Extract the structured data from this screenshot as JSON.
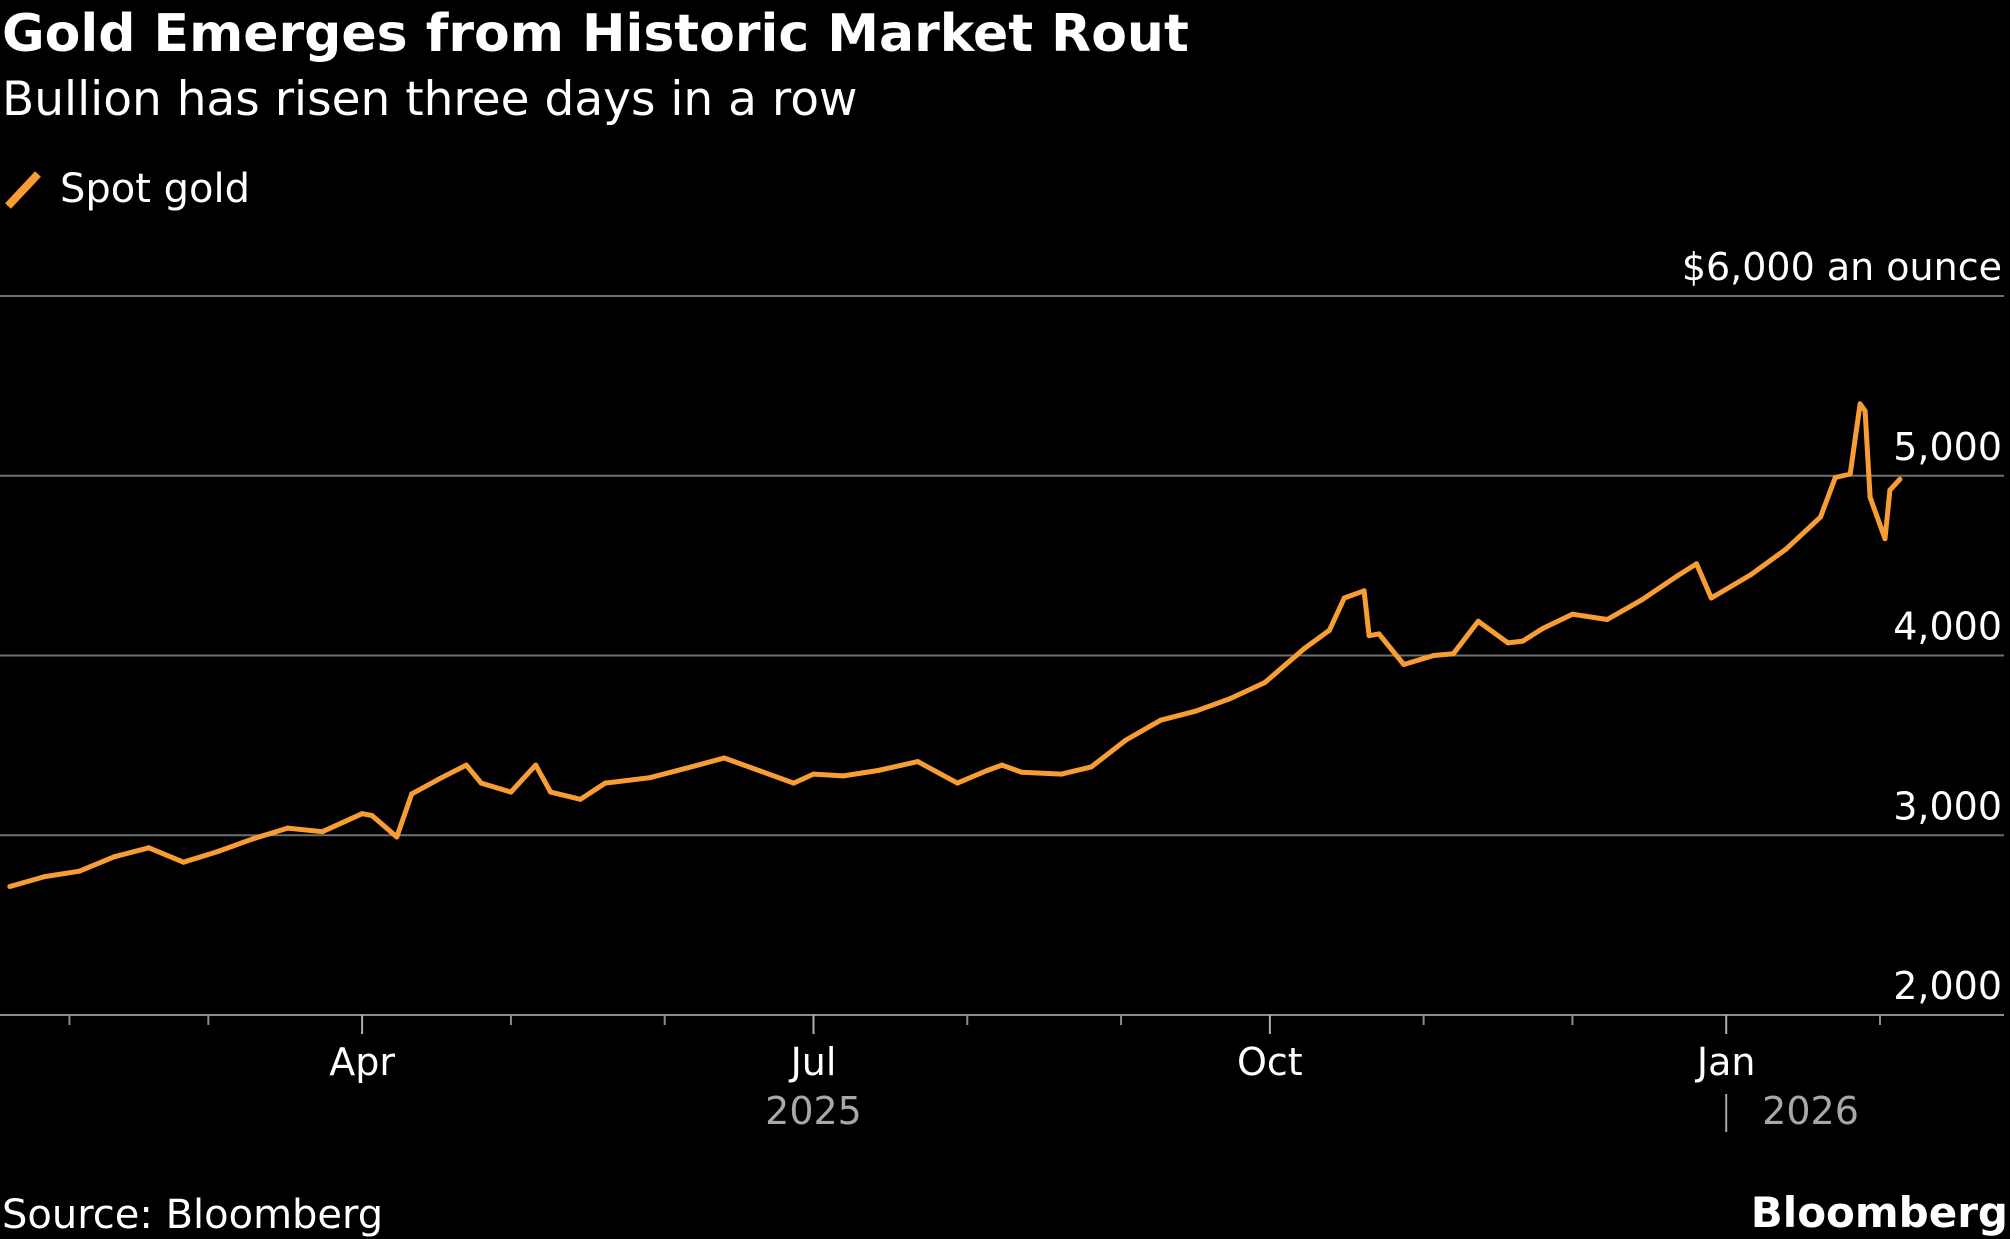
{
  "header": {
    "title": "Gold Emerges from Historic Market Rout",
    "subtitle": "Bullion has risen three days in a row"
  },
  "footer": {
    "source": "Source: Bloomberg",
    "brand": "Bloomberg"
  },
  "colors": {
    "background": "#000000",
    "series": "#f89d34",
    "grid": "#6e6e6e",
    "text": "#ffffff",
    "muted": "#a8a8a8"
  },
  "chart_data": {
    "type": "line",
    "title": "Gold Emerges from Historic Market Rout",
    "subtitle": "Bullion has risen three days in a row",
    "xlabel": "",
    "ylabel": "",
    "y_unit_label": "$6,000 an ounce",
    "ylim": [
      2000,
      6000
    ],
    "xlim": [
      "2025-01-18",
      "2026-02-26"
    ],
    "grid": true,
    "legend": "top-left",
    "y_ticks": [
      {
        "value": 6000,
        "label": "$6,000 an ounce"
      },
      {
        "value": 5000,
        "label": "5,000"
      },
      {
        "value": 4000,
        "label": "4,000"
      },
      {
        "value": 3000,
        "label": "3,000"
      },
      {
        "value": 2000,
        "label": "2,000"
      }
    ],
    "x_major_ticks": [
      {
        "date": "2025-04-01",
        "label": "Apr"
      },
      {
        "date": "2025-07-01",
        "label": "Jul"
      },
      {
        "date": "2025-10-01",
        "label": "Oct"
      },
      {
        "date": "2026-01-01",
        "label": "Jan"
      }
    ],
    "x_minor_ticks": [
      "2025-02-01",
      "2025-03-01",
      "2025-05-01",
      "2025-06-01",
      "2025-08-01",
      "2025-09-01",
      "2025-11-01",
      "2025-12-01",
      "2026-02-01"
    ],
    "year_labels": [
      {
        "date": "2025-07-01",
        "label": "2025"
      },
      {
        "date": "2026-01-18",
        "label": "2026"
      }
    ],
    "year_divider_date": "2026-01-01",
    "series": [
      {
        "name": "Spot gold",
        "color": "#f89d34",
        "x": [
          "2025-01-20",
          "2025-01-27",
          "2025-02-03",
          "2025-02-10",
          "2025-02-17",
          "2025-02-24",
          "2025-03-03",
          "2025-03-10",
          "2025-03-17",
          "2025-03-24",
          "2025-04-01",
          "2025-04-03",
          "2025-04-08",
          "2025-04-11",
          "2025-04-17",
          "2025-04-22",
          "2025-04-25",
          "2025-05-01",
          "2025-05-06",
          "2025-05-09",
          "2025-05-15",
          "2025-05-20",
          "2025-05-29",
          "2025-06-05",
          "2025-06-13",
          "2025-06-20",
          "2025-06-27",
          "2025-07-01",
          "2025-07-07",
          "2025-07-14",
          "2025-07-22",
          "2025-07-30",
          "2025-08-05",
          "2025-08-08",
          "2025-08-12",
          "2025-08-20",
          "2025-08-26",
          "2025-09-02",
          "2025-09-09",
          "2025-09-16",
          "2025-09-23",
          "2025-09-30",
          "2025-10-08",
          "2025-10-13",
          "2025-10-16",
          "2025-10-20",
          "2025-10-21",
          "2025-10-23",
          "2025-10-28",
          "2025-11-03",
          "2025-11-07",
          "2025-11-12",
          "2025-11-18",
          "2025-11-21",
          "2025-11-25",
          "2025-12-01",
          "2025-12-08",
          "2025-12-15",
          "2025-12-22",
          "2025-12-26",
          "2025-12-29",
          "2026-01-06",
          "2026-01-13",
          "2026-01-20",
          "2026-01-23",
          "2026-01-26",
          "2026-01-28",
          "2026-01-29",
          "2026-01-30",
          "2026-02-02",
          "2026-02-03",
          "2026-02-04",
          "2026-02-05"
        ],
        "values": [
          2715,
          2770,
          2800,
          2880,
          2930,
          2850,
          2910,
          2980,
          3040,
          3020,
          3120,
          3110,
          2990,
          3230,
          3320,
          3390,
          3290,
          3240,
          3390,
          3240,
          3200,
          3290,
          3320,
          3370,
          3430,
          3360,
          3290,
          3340,
          3330,
          3360,
          3410,
          3290,
          3360,
          3390,
          3350,
          3340,
          3380,
          3530,
          3640,
          3690,
          3760,
          3850,
          4040,
          4140,
          4320,
          4360,
          4110,
          4120,
          3950,
          4000,
          4010,
          4190,
          4070,
          4080,
          4150,
          4230,
          4200,
          4310,
          4440,
          4510,
          4320,
          4450,
          4590,
          4770,
          4990,
          5010,
          5400,
          5360,
          4880,
          4650,
          4920,
          4950,
          4980
        ]
      }
    ]
  }
}
